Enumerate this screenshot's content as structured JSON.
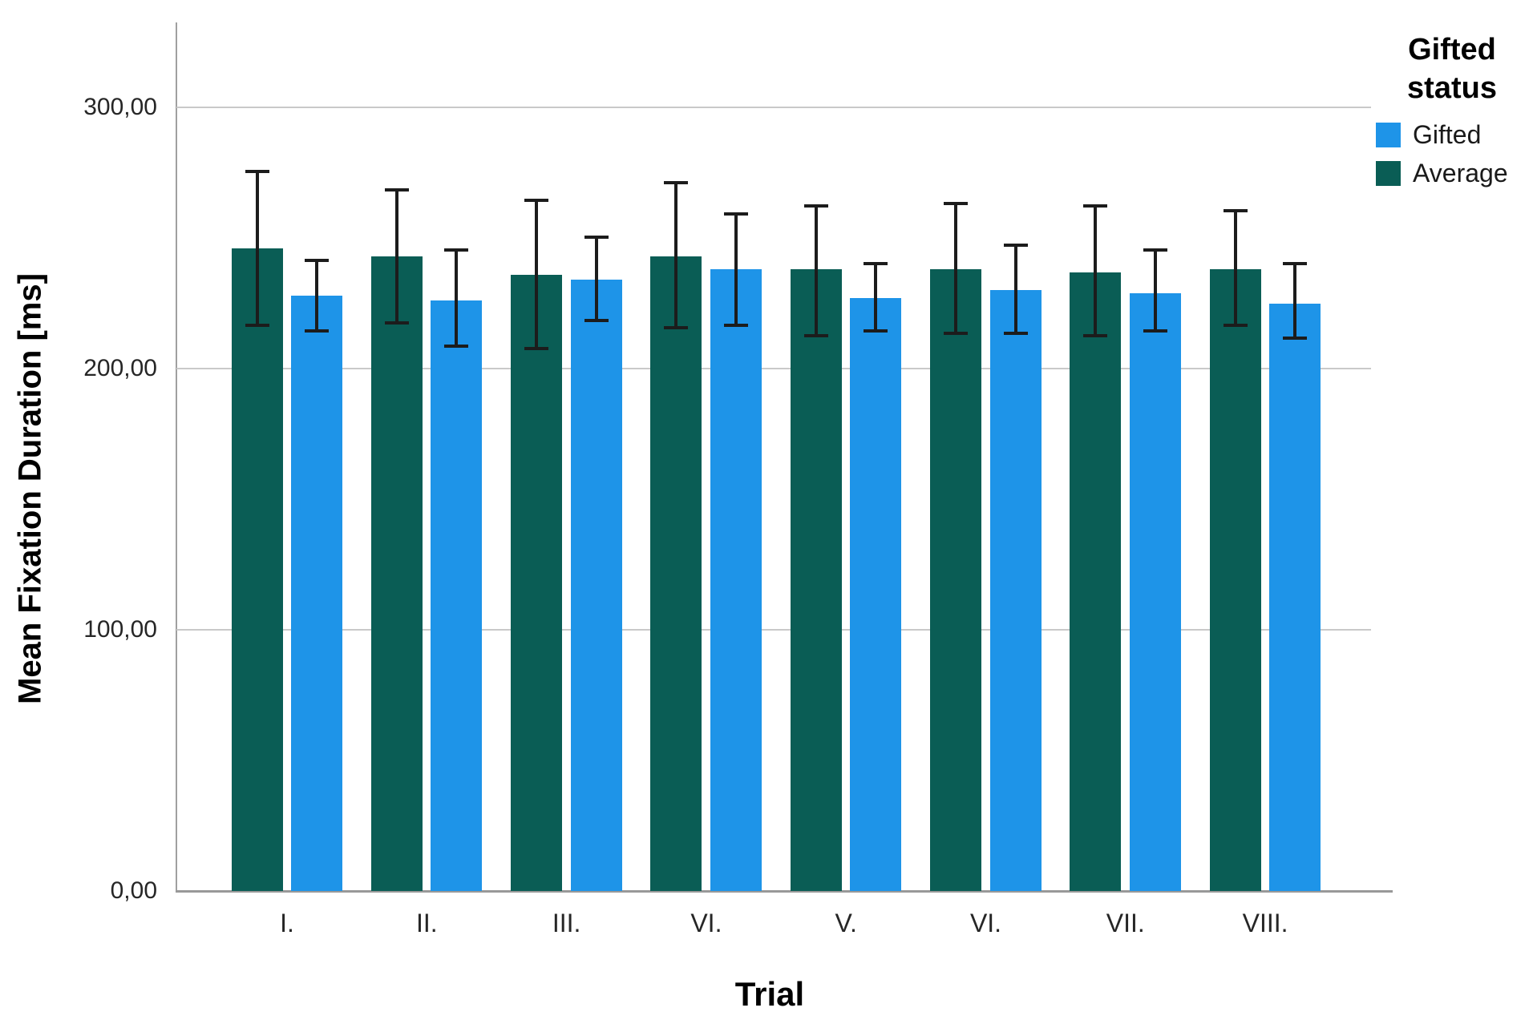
{
  "chart_data": {
    "type": "bar",
    "title": "",
    "xlabel": "Trial",
    "ylabel": "Mean Fixation Duration [ms]",
    "categories": [
      "I.",
      "II.",
      "III.",
      "VI.",
      "V.",
      "VI.",
      "VII.",
      "VIII."
    ],
    "series": [
      {
        "name": "Average",
        "color": "#0a5d55",
        "values": [
          246,
          243,
          236,
          243,
          238,
          238,
          237,
          238
        ],
        "error_low": [
          216,
          217,
          207,
          215,
          212,
          213,
          212,
          216
        ],
        "error_high": [
          276,
          269,
          265,
          272,
          263,
          264,
          263,
          261
        ]
      },
      {
        "name": "Gifted",
        "color": "#1e94e8",
        "values": [
          228,
          226,
          234,
          238,
          227,
          230,
          229,
          225
        ],
        "error_low": [
          214,
          208,
          218,
          216,
          214,
          213,
          214,
          211
        ],
        "error_high": [
          242,
          246,
          251,
          260,
          241,
          248,
          246,
          241
        ]
      }
    ],
    "error_bars": true,
    "ylim": [
      0,
      332.6
    ],
    "yticks": [
      0,
      100,
      200,
      300
    ],
    "ytick_labels": [
      "0,00",
      "100,00",
      "200,00",
      "300,00"
    ],
    "grid": "horizontal",
    "legend_position": "top-right"
  },
  "legend": {
    "title_lines": [
      "Gifted",
      "status"
    ],
    "items": [
      {
        "label": "Gifted",
        "color": "#1e94e8"
      },
      {
        "label": "Average",
        "color": "#0a5d55"
      }
    ]
  }
}
